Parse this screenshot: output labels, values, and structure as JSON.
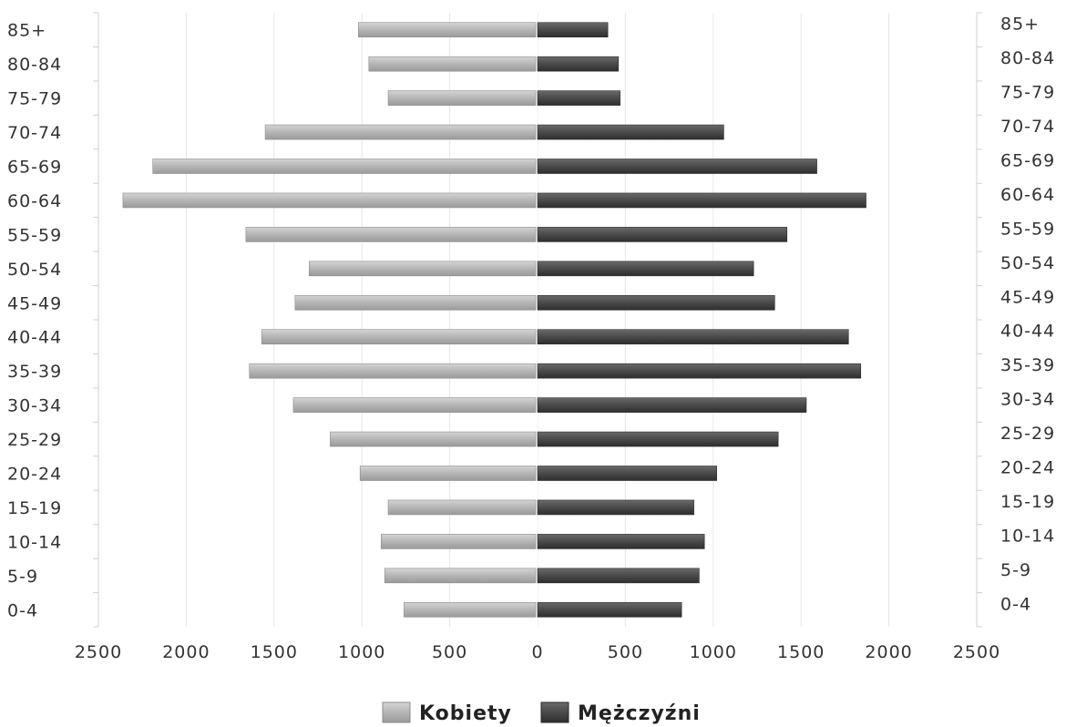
{
  "chart_data": {
    "type": "bar",
    "orientation": "horizontal",
    "layout": "population-pyramid",
    "categories": [
      "85+",
      "80-84",
      "75-79",
      "70-74",
      "65-69",
      "60-64",
      "55-59",
      "50-54",
      "45-49",
      "40-44",
      "35-39",
      "30-34",
      "25-29",
      "20-24",
      "15-19",
      "10-14",
      "5-9",
      "0-4"
    ],
    "series": [
      {
        "name": "Kobiety",
        "side": "left",
        "color": "#b5b5b5",
        "values": [
          1010,
          950,
          840,
          1540,
          2180,
          2350,
          1650,
          1290,
          1370,
          1560,
          1630,
          1380,
          1170,
          1000,
          840,
          880,
          860,
          750
        ]
      },
      {
        "name": "Mężczyźni",
        "side": "right",
        "color": "#4a4a4a",
        "values": [
          400,
          460,
          470,
          1060,
          1590,
          1870,
          1420,
          1230,
          1350,
          1770,
          1840,
          1530,
          1370,
          1020,
          890,
          950,
          920,
          820
        ]
      }
    ],
    "x_ticks": [
      "2500",
      "2000",
      "1500",
      "1000",
      "500",
      "0",
      "500",
      "1000",
      "1500",
      "2000",
      "2500"
    ],
    "xlim": [
      -2500,
      2500
    ],
    "grid": true,
    "legend_position": "bottom-center",
    "title": "",
    "xlabel": "",
    "ylabel": ""
  }
}
